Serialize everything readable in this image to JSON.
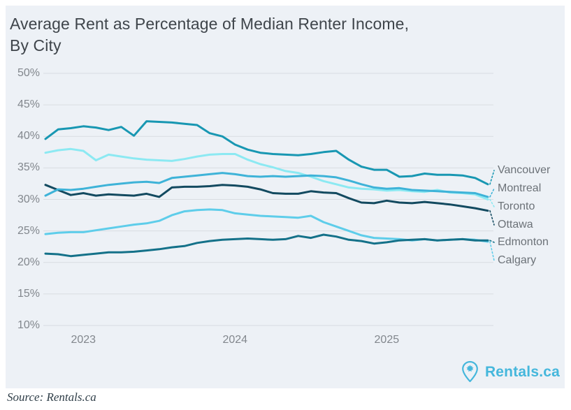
{
  "title": {
    "lines": [
      "Average Rent as Percentage of Median Renter Income,",
      "By City"
    ]
  },
  "source_note": "Source: Rentals.ca",
  "logo": {
    "text": "Rentals.ca",
    "icon": "maple-leaf-pin-icon",
    "color": "#45b7dc"
  },
  "colors": {
    "background": "#edf1f6",
    "gridline": "#d8dce1",
    "tick_text": "#82878d",
    "legend_text": "#6c7278",
    "title_text": "#3f454b",
    "source_text": "#2f3e48"
  },
  "chart_data": {
    "type": "line",
    "title": "Average Rent as Percentage of Median Renter Income, By City",
    "x_unit": "month",
    "x": [
      "2022-10",
      "2022-11",
      "2022-12",
      "2023-01",
      "2023-02",
      "2023-03",
      "2023-04",
      "2023-05",
      "2023-06",
      "2023-07",
      "2023-08",
      "2023-09",
      "2023-10",
      "2023-11",
      "2023-12",
      "2024-01",
      "2024-02",
      "2024-03",
      "2024-04",
      "2024-05",
      "2024-06",
      "2024-07",
      "2024-08",
      "2024-09",
      "2024-10",
      "2024-11",
      "2024-12",
      "2025-01",
      "2025-02",
      "2025-03",
      "2025-04",
      "2025-05",
      "2025-06",
      "2025-07",
      "2025-08",
      "2025-09"
    ],
    "x_tick_labels": [
      "2023",
      "2024",
      "2025"
    ],
    "y_tick_labels": [
      "50%",
      "45%",
      "40%",
      "35%",
      "30%",
      "25%",
      "20%",
      "15%",
      "10%"
    ],
    "ylim": [
      10,
      50
    ],
    "grid": true,
    "legend_position": "right",
    "series": [
      {
        "name": "Vancouver",
        "color": "#1897b2",
        "values": [
          39.6,
          41.1,
          41.3,
          41.6,
          41.4,
          41.0,
          41.5,
          40.1,
          42.4,
          42.3,
          42.2,
          42.0,
          41.8,
          40.5,
          40.0,
          38.7,
          37.9,
          37.4,
          37.2,
          37.1,
          37.0,
          37.2,
          37.5,
          37.7,
          36.3,
          35.2,
          34.7,
          34.7,
          33.6,
          33.7,
          34.1,
          33.9,
          33.9,
          33.8,
          33.4,
          32.4
        ]
      },
      {
        "name": "Montreal",
        "color": "#3eb3d8",
        "values": [
          30.6,
          31.6,
          31.5,
          31.7,
          32.0,
          32.3,
          32.5,
          32.7,
          32.8,
          32.6,
          33.4,
          33.6,
          33.8,
          34.0,
          34.2,
          34.0,
          33.7,
          33.6,
          33.7,
          33.6,
          33.7,
          33.8,
          33.7,
          33.5,
          33.0,
          32.4,
          31.9,
          31.7,
          31.8,
          31.5,
          31.4,
          31.3,
          31.2,
          31.1,
          31.0,
          30.4
        ]
      },
      {
        "name": "Toronto",
        "color": "#8ce9f2",
        "values": [
          37.4,
          37.8,
          38.0,
          37.7,
          36.2,
          37.1,
          36.8,
          36.5,
          36.3,
          36.2,
          36.1,
          36.4,
          36.8,
          37.1,
          37.2,
          37.2,
          36.3,
          35.6,
          35.1,
          34.5,
          34.2,
          33.6,
          32.9,
          32.4,
          31.9,
          31.7,
          31.6,
          31.4,
          31.5,
          31.3,
          31.2,
          31.5,
          31.1,
          31.0,
          30.8,
          30.0
        ]
      },
      {
        "name": "Ottawa",
        "color": "#134a60",
        "values": [
          32.3,
          31.5,
          30.7,
          31.0,
          30.6,
          30.8,
          30.7,
          30.6,
          30.9,
          30.4,
          31.9,
          32.0,
          32.0,
          32.1,
          32.3,
          32.2,
          32.0,
          31.6,
          31.0,
          30.9,
          30.9,
          31.3,
          31.1,
          31.0,
          30.2,
          29.5,
          29.4,
          29.8,
          29.5,
          29.4,
          29.6,
          29.4,
          29.2,
          28.9,
          28.6,
          28.2
        ]
      },
      {
        "name": "Edmonton",
        "color": "#147189",
        "values": [
          21.4,
          21.3,
          21.0,
          21.2,
          21.4,
          21.6,
          21.6,
          21.7,
          21.9,
          22.1,
          22.4,
          22.6,
          23.1,
          23.4,
          23.6,
          23.7,
          23.8,
          23.7,
          23.6,
          23.7,
          24.2,
          23.9,
          24.4,
          24.1,
          23.6,
          23.4,
          23.0,
          23.2,
          23.5,
          23.6,
          23.7,
          23.5,
          23.6,
          23.7,
          23.5,
          23.5
        ]
      },
      {
        "name": "Calgary",
        "color": "#5ecdea",
        "values": [
          24.5,
          24.7,
          24.8,
          24.8,
          25.1,
          25.4,
          25.7,
          26.0,
          26.2,
          26.6,
          27.5,
          28.1,
          28.3,
          28.4,
          28.3,
          27.8,
          27.6,
          27.4,
          27.3,
          27.2,
          27.1,
          27.4,
          26.4,
          25.7,
          25.0,
          24.3,
          23.9,
          23.8,
          23.7,
          23.5,
          23.7,
          23.5,
          23.6,
          23.7,
          23.6,
          23.3
        ]
      }
    ]
  }
}
